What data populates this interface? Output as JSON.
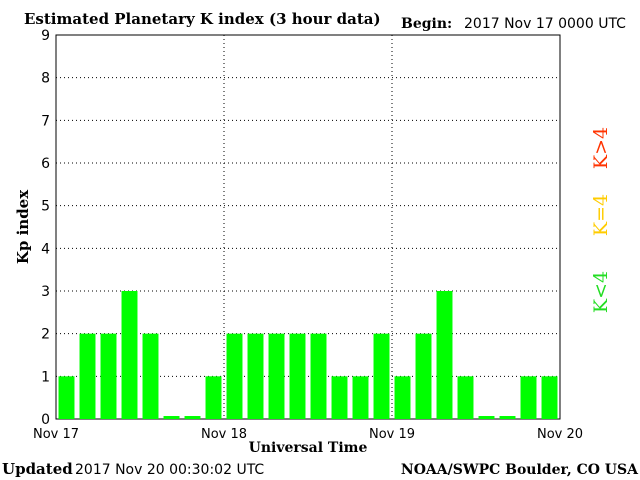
{
  "chart_data": {
    "type": "bar",
    "title": "Estimated Planetary K index (3 hour data)",
    "begin_label": "Begin:",
    "begin_value": "2017 Nov 17 0000 UTC",
    "ylabel": "Kp index",
    "xlabel": "Universal Time",
    "ylim": [
      0,
      9
    ],
    "yticks": [
      "0",
      "1",
      "2",
      "3",
      "4",
      "5",
      "6",
      "7",
      "8",
      "9"
    ],
    "xticks": [
      "Nov 17",
      "Nov 18",
      "Nov 19",
      "Nov 20"
    ],
    "grid": true,
    "values": [
      1,
      2,
      2,
      3,
      2,
      0.07,
      0.07,
      1,
      2,
      2,
      2,
      2,
      2,
      1,
      1,
      2,
      1,
      2,
      3,
      1,
      0.07,
      0.07,
      1,
      1
    ],
    "legend": [
      {
        "label": "K<4",
        "color": "#22dd22"
      },
      {
        "label": "K=4",
        "color": "#ffcc00"
      },
      {
        "label": "K>4",
        "color": "#ff3300"
      }
    ],
    "bar_color": "#00ff00"
  },
  "footer": {
    "updated_label": "Updated",
    "updated_value": "2017 Nov 20 00:30:02 UTC",
    "credit": "NOAA/SWPC Boulder, CO USA"
  }
}
